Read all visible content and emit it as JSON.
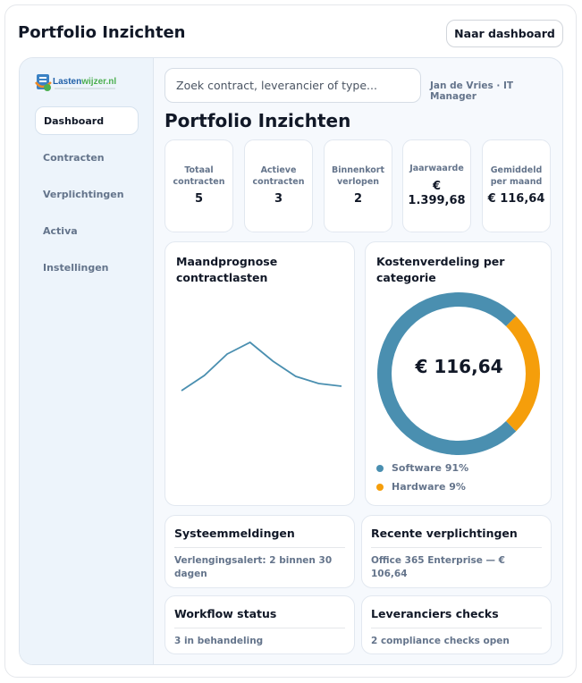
{
  "header": {
    "title": "Portfolio Inzichten",
    "dashboard_button": "Naar dashboard"
  },
  "logo": {
    "text": "Lastenwijzer.nl",
    "tagline": "Beheer je vaste lasten"
  },
  "sidebar": {
    "items": [
      {
        "label": "Dashboard",
        "active": true
      },
      {
        "label": "Contracten"
      },
      {
        "label": "Verplichtingen"
      },
      {
        "label": "Activa"
      },
      {
        "label": "Instellingen"
      }
    ]
  },
  "search": {
    "placeholder": "Zoek contract, leverancier of type..."
  },
  "user": "Jan de Vries · IT Manager",
  "page_title": "Portfolio Inzichten",
  "stats": [
    {
      "label": "Totaal contracten",
      "value": "5"
    },
    {
      "label": "Actieve contracten",
      "value": "3"
    },
    {
      "label": "Binnenkort verlopen",
      "value": "2"
    },
    {
      "label": "Jaarwaarde",
      "value": "€ 1.399,68"
    },
    {
      "label": "Gemiddeld per maand",
      "value": "€ 116,64"
    }
  ],
  "chart_data": [
    {
      "type": "line",
      "title": "Maandprognose contractlasten",
      "values": [
        100,
        117,
        141,
        154,
        133,
        116,
        108,
        105
      ],
      "color": "#4a8fb0",
      "grid": false,
      "axes": false
    },
    {
      "type": "pie",
      "title": "Kostenverdeling per categorie",
      "center_label": "€ 116,64",
      "slices": [
        {
          "name": "Software",
          "percent": 91,
          "label": "Software 91%",
          "color": "#4a8fb0"
        },
        {
          "name": "Hardware",
          "percent": 9,
          "label": "Hardware 9%",
          "color": "#f59e0b"
        }
      ]
    }
  ],
  "panels": [
    {
      "title": "Systeemmeldingen",
      "text": "Verlengingsalert: 2 binnen 30 dagen"
    },
    {
      "title": "Recente verplichtingen",
      "text": "Office 365 Enterprise — € 106,64"
    },
    {
      "title": "Workflow status",
      "text": "3 in behandeling"
    },
    {
      "title": "Leveranciers checks",
      "text": "2 compliance checks open"
    }
  ]
}
